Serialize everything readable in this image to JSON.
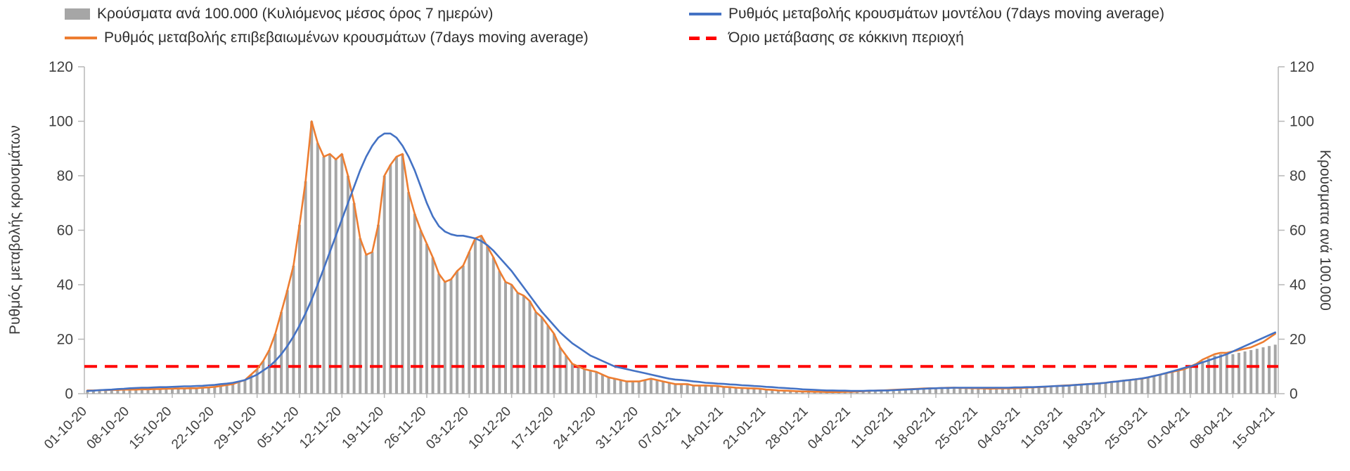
{
  "legend": {
    "items": [
      {
        "label": "Κρούσματα ανά 100.000 (Κυλιόμενος μέσος όρος 7 ημερών)",
        "swatch": "bar-swatch",
        "color": "#a6a6a6"
      },
      {
        "label": "Ρυθμός μεταβολής κρουσμάτων μοντέλου (7days moving average)",
        "swatch": "line-swatch",
        "color": "#4472c4"
      },
      {
        "label": "Ρυθμός μεταβολής επιβεβαιωμένων κρουσμάτων (7days moving average)",
        "swatch": "line-swatch",
        "color": "#ed7d31"
      },
      {
        "label": "Όριο μετάβασης σε κόκκινη περιοχή",
        "swatch": "dash-swatch",
        "color": "#ff0000"
      }
    ]
  },
  "axes": {
    "left_title": "Ρυθμός μεταβολής κρουσμάτων",
    "right_title": "Κρούσματα ανά 100.000",
    "yticks": [
      0,
      20,
      40,
      60,
      80,
      100,
      120
    ]
  },
  "chart_data": {
    "type": "bar",
    "subtype": "combo-bar-line",
    "ylim": [
      0,
      120
    ],
    "grid": false,
    "legend_position": "top",
    "x_tick_labels": [
      "01-10-20",
      "08-10-20",
      "15-10-20",
      "22-10-20",
      "29-10-20",
      "05-11-20",
      "12-11-20",
      "19-11-20",
      "26-11-20",
      "03-12-20",
      "10-12-20",
      "17-12-20",
      "24-12-20",
      "31-12-20",
      "07-01-21",
      "14-01-21",
      "21-01-21",
      "28-01-21",
      "04-02-21",
      "11-02-21",
      "18-02-21",
      "25-02-21",
      "04-03-21",
      "11-03-21",
      "18-03-21",
      "25-03-21",
      "01-04-21",
      "08-04-21",
      "15-04-21"
    ],
    "x_tick_day_index": [
      0,
      7,
      14,
      21,
      28,
      35,
      42,
      49,
      56,
      63,
      70,
      77,
      84,
      91,
      98,
      105,
      112,
      119,
      126,
      133,
      140,
      147,
      154,
      161,
      168,
      175,
      182,
      189,
      196
    ],
    "threshold": {
      "label": "Όριο μετάβασης σε κόκκινη περιοχή",
      "value": 10,
      "color": "#ff0000"
    },
    "series": [
      {
        "name": "Κρούσματα ανά 100.000 (Κυλιόμενος μέσος όρος 7 ημερών)",
        "type": "bar",
        "color": "#a6a6a6",
        "values": [
          1.2,
          1.2,
          1.3,
          1.3,
          1.4,
          1.4,
          1.5,
          1.5,
          1.5,
          1.6,
          1.6,
          1.7,
          1.7,
          1.8,
          1.8,
          1.9,
          1.9,
          2,
          2,
          2.2,
          2.3,
          2.5,
          2.8,
          3.2,
          3.5,
          4.3,
          5,
          7,
          9,
          12,
          16,
          22,
          30,
          38,
          47,
          62,
          78,
          100,
          92,
          87,
          88,
          86,
          88,
          80,
          70,
          57,
          51,
          52,
          62,
          80,
          84,
          87,
          88,
          74,
          66,
          60,
          55,
          50,
          44,
          41,
          42,
          45,
          47,
          52,
          57,
          58,
          54,
          50,
          45,
          41,
          40,
          37,
          36,
          34,
          30,
          28,
          25,
          22,
          17,
          14,
          11,
          10,
          9,
          8.5,
          8,
          7,
          6,
          5.5,
          5,
          4.5,
          4.5,
          4.5,
          5,
          5.5,
          5,
          4.5,
          4,
          3.5,
          3.5,
          3.5,
          3,
          3,
          3,
          2.9,
          2.8,
          2.5,
          2.4,
          2.2,
          2.1,
          2,
          1.9,
          1.8,
          1.5,
          1.4,
          1.2,
          1.1,
          1,
          0.9,
          0.8,
          0.8,
          0.7,
          0.7,
          0.6,
          0.6,
          0.6,
          0.7,
          0.7,
          0.8,
          0.9,
          1,
          1.1,
          1.2,
          1.3,
          1.4,
          1.5,
          1.6,
          1.7,
          1.8,
          1.9,
          2,
          2,
          2.1,
          2.2,
          2.2,
          2.1,
          2.1,
          2,
          2,
          1.9,
          1.8,
          1.9,
          1.9,
          2,
          2,
          2.1,
          2.2,
          2.3,
          2.4,
          2.5,
          2.7,
          2.8,
          3,
          3.1,
          3.2,
          3.4,
          3.5,
          3.7,
          3.8,
          4,
          4.3,
          4.5,
          4.8,
          5,
          5.3,
          5.5,
          6,
          6.5,
          7,
          7.5,
          8,
          8.5,
          9,
          10,
          11,
          12,
          13,
          14,
          14.5,
          14.5,
          14.5,
          15,
          15.5,
          16,
          16.5,
          17,
          17.5,
          18
        ]
      },
      {
        "name": "Ρυθμός μεταβολής επιβεβαιωμένων κρουσμάτων (7days moving average)",
        "type": "line",
        "color": "#ed7d31",
        "values": [
          1.2,
          1.2,
          1.3,
          1.3,
          1.4,
          1.4,
          1.5,
          1.5,
          1.5,
          1.6,
          1.6,
          1.7,
          1.7,
          1.8,
          1.8,
          1.9,
          1.9,
          2,
          2,
          2.2,
          2.3,
          2.5,
          2.8,
          3.2,
          3.5,
          4.3,
          5,
          7,
          9,
          12,
          16,
          22,
          30,
          38,
          47,
          62,
          78,
          100,
          92,
          87,
          88,
          86,
          88,
          80,
          70,
          57,
          51,
          52,
          62,
          80,
          84,
          87,
          88,
          74,
          66,
          60,
          55,
          50,
          44,
          41,
          42,
          45,
          47,
          52,
          57,
          58,
          54,
          50,
          45,
          41,
          40,
          37,
          36,
          34,
          30,
          28,
          25,
          22,
          17,
          14,
          11,
          10,
          9,
          8.5,
          8,
          7,
          6,
          5.5,
          5,
          4.5,
          4.5,
          4.5,
          5,
          5.5,
          5,
          4.5,
          4,
          3.5,
          3.5,
          3.5,
          3,
          3,
          3,
          2.9,
          2.8,
          2.5,
          2.4,
          2.2,
          2.1,
          2,
          1.9,
          1.8,
          1.5,
          1.4,
          1.2,
          1.1,
          1,
          0.9,
          0.8,
          0.8,
          0.7,
          0.7,
          0.6,
          0.6,
          0.6,
          0.7,
          0.7,
          0.8,
          0.9,
          1,
          1.1,
          1.2,
          1.3,
          1.4,
          1.5,
          1.6,
          1.7,
          1.8,
          1.9,
          2,
          2,
          2.1,
          2.2,
          2.2,
          2.1,
          2.1,
          2,
          2,
          1.9,
          1.8,
          1.9,
          1.9,
          2,
          2,
          2.1,
          2.2,
          2.3,
          2.4,
          2.5,
          2.7,
          2.8,
          3,
          3.1,
          3.2,
          3.4,
          3.5,
          3.7,
          3.8,
          4,
          4.3,
          4.5,
          4.8,
          5,
          5.3,
          5.5,
          6,
          6.5,
          7,
          7.5,
          8,
          8.5,
          9,
          10,
          11,
          12.5,
          13.5,
          14.5,
          15,
          15,
          15.5,
          16,
          16.5,
          17,
          18,
          19,
          20.5,
          22
        ]
      },
      {
        "name": "Ρυθμός μεταβολής κρουσμάτων μοντέλου (7days moving average)",
        "type": "line",
        "color": "#4472c4",
        "values": [
          1,
          1.1,
          1.3,
          1.4,
          1.5,
          1.7,
          1.8,
          2,
          2.1,
          2.2,
          2.2,
          2.3,
          2.4,
          2.4,
          2.5,
          2.6,
          2.7,
          2.7,
          2.8,
          2.9,
          3.1,
          3.2,
          3.5,
          3.7,
          4,
          4.5,
          5,
          6,
          7,
          8.5,
          10,
          12,
          14.5,
          17.5,
          21,
          25,
          29.5,
          34.5,
          40,
          46,
          52,
          58,
          64,
          70,
          76,
          82,
          87,
          91,
          94,
          95.5,
          95.5,
          94,
          91,
          87,
          82,
          76,
          70,
          65,
          61.5,
          59.5,
          58.5,
          58,
          58,
          57.5,
          57,
          56,
          54.5,
          52.5,
          50,
          47.5,
          45,
          42,
          39,
          36,
          33,
          30,
          27.5,
          25,
          22.5,
          20.5,
          18.5,
          17,
          15.5,
          14,
          13,
          12,
          11,
          10,
          9.5,
          9,
          8.5,
          8,
          7.5,
          7,
          6.5,
          6,
          5.5,
          5.2,
          5,
          4.8,
          4.5,
          4.3,
          4,
          3.9,
          3.7,
          3.6,
          3.4,
          3.3,
          3.1,
          3,
          2.8,
          2.7,
          2.5,
          2.4,
          2.2,
          2.1,
          1.9,
          1.8,
          1.6,
          1.5,
          1.4,
          1.3,
          1.2,
          1.2,
          1.1,
          1.1,
          1,
          1,
          1,
          1.1,
          1.1,
          1.2,
          1.2,
          1.3,
          1.4,
          1.5,
          1.6,
          1.7,
          1.8,
          1.9,
          2,
          2.1,
          2.1,
          2.2,
          2.2,
          2.2,
          2.2,
          2.2,
          2.2,
          2.2,
          2.2,
          2.2,
          2.2,
          2.3,
          2.3,
          2.4,
          2.4,
          2.5,
          2.6,
          2.7,
          2.8,
          2.9,
          3,
          3.2,
          3.3,
          3.5,
          3.6,
          3.8,
          4,
          4.3,
          4.5,
          4.8,
          5,
          5.3,
          5.6,
          6,
          6.5,
          7,
          7.6,
          8.2,
          8.8,
          9.5,
          10,
          10.7,
          11.5,
          12.2,
          13,
          13.7,
          14.5,
          15.5,
          16.5,
          17.5,
          18.5,
          19.5,
          20.5,
          21.5,
          22.5
        ]
      }
    ]
  }
}
